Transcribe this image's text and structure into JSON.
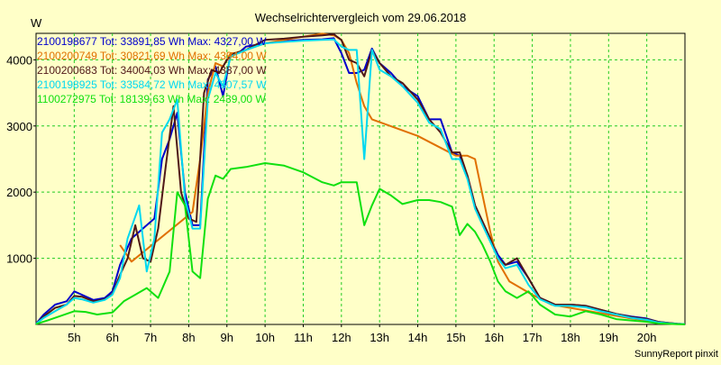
{
  "chart_data": {
    "type": "line",
    "title": "Wechselrichtervergleich vom 29.06.2018",
    "ylabel": "W",
    "xlabel": "",
    "footer": "SunnyReport pinxit",
    "xlim": [
      4.0,
      21.0
    ],
    "ylim": [
      0,
      4400
    ],
    "xticks": [
      5,
      6,
      7,
      8,
      9,
      10,
      11,
      12,
      13,
      14,
      15,
      16,
      17,
      18,
      19,
      20
    ],
    "xtick_labels": [
      "5h",
      "6h",
      "7h",
      "8h",
      "9h",
      "10h",
      "11h",
      "12h",
      "13h",
      "14h",
      "15h",
      "16h",
      "17h",
      "18h",
      "19h",
      "20h"
    ],
    "yticks": [
      1000,
      2000,
      3000,
      4000
    ],
    "ytick_labels": [
      "1000",
      "2000",
      "3000",
      "4000"
    ],
    "grid": true,
    "legend_position": "top-left",
    "series": [
      {
        "name": "2100198677",
        "legend": "2100198677 Tot: 33891,85 Wh Max: 4327,00 W",
        "color": "#0000cc",
        "x": [
          4.0,
          4.2,
          4.5,
          4.8,
          5.0,
          5.2,
          5.5,
          5.8,
          6.0,
          6.2,
          6.5,
          6.7,
          6.9,
          7.1,
          7.3,
          7.5,
          7.7,
          7.9,
          8.1,
          8.3,
          8.5,
          8.7,
          8.9,
          9.1,
          9.3,
          9.5,
          10.0,
          10.5,
          11.0,
          11.5,
          11.8,
          12.0,
          12.2,
          12.4,
          12.6,
          12.8,
          13.0,
          13.3,
          13.6,
          14.0,
          14.3,
          14.6,
          14.9,
          15.1,
          15.3,
          15.5,
          15.7,
          15.9,
          16.1,
          16.3,
          16.6,
          16.9,
          17.2,
          17.6,
          18.0,
          18.4,
          18.8,
          19.2,
          19.6,
          20.0,
          20.3,
          20.6,
          20.8,
          21.0
        ],
        "y": [
          10,
          150,
          300,
          350,
          500,
          450,
          370,
          400,
          500,
          900,
          1300,
          1400,
          1500,
          1600,
          2500,
          2800,
          3200,
          2000,
          1500,
          1500,
          3700,
          3900,
          3450,
          4100,
          4100,
          4200,
          4250,
          4280,
          4300,
          4310,
          4327,
          4100,
          3800,
          3800,
          3850,
          4170,
          3950,
          3800,
          3600,
          3450,
          3100,
          3100,
          2600,
          2550,
          2250,
          1800,
          1550,
          1300,
          1050,
          900,
          950,
          700,
          400,
          300,
          300,
          280,
          220,
          160,
          120,
          90,
          40,
          20,
          10,
          5
        ]
      },
      {
        "name": "2100200749",
        "legend": "2100200749 Tot: 30821,69 Wh Max: 4394,00 W",
        "color": "#e07000",
        "x": [
          6.2,
          6.5,
          8.1,
          8.3,
          8.5,
          8.7,
          8.9,
          9.1,
          9.3,
          9.5,
          10.0,
          10.5,
          11.0,
          11.5,
          11.8,
          12.0,
          12.2,
          12.4,
          12.6,
          12.8,
          14.0,
          15.0,
          15.3,
          15.5,
          15.7,
          15.9,
          16.1,
          16.4,
          17.0,
          17.5,
          18.0,
          18.5,
          19.0,
          19.5,
          20.0,
          20.5,
          20.8
        ],
        "y": [
          1200,
          950,
          1700,
          2500,
          3500,
          3950,
          3900,
          4100,
          4100,
          4150,
          4250,
          4300,
          4350,
          4394,
          4370,
          4300,
          4100,
          3650,
          3300,
          3100,
          2850,
          2550,
          2550,
          2500,
          1950,
          1400,
          950,
          650,
          450,
          300,
          250,
          200,
          150,
          100,
          60,
          20,
          10
        ]
      },
      {
        "name": "2100200683",
        "legend": "2100200683 Tot: 34004,03 Wh Max: 4387,00 W",
        "color": "#501818",
        "x": [
          4.0,
          4.2,
          4.5,
          4.8,
          5.0,
          5.2,
          5.5,
          5.8,
          6.0,
          6.2,
          6.4,
          6.6,
          6.8,
          7.0,
          7.2,
          7.4,
          7.6,
          7.8,
          8.0,
          8.2,
          8.4,
          8.6,
          8.8,
          9.0,
          9.2,
          9.5,
          10.0,
          10.5,
          11.0,
          11.5,
          11.8,
          12.0,
          12.2,
          12.4,
          12.6,
          12.8,
          13.0,
          13.3,
          13.6,
          14.0,
          14.3,
          14.6,
          14.9,
          15.1,
          15.3,
          15.5,
          15.7,
          15.9,
          16.1,
          16.3,
          16.6,
          16.9,
          17.2,
          17.6,
          18.0,
          18.4,
          18.8,
          19.2,
          19.6,
          20.0,
          20.3,
          20.6,
          20.8,
          21.0
        ],
        "y": [
          10,
          120,
          250,
          300,
          430,
          420,
          350,
          380,
          460,
          750,
          1000,
          1500,
          1000,
          950,
          1450,
          2400,
          3300,
          2000,
          1600,
          1550,
          3500,
          3850,
          3800,
          4000,
          4100,
          4150,
          4300,
          4320,
          4350,
          4370,
          4387,
          4300,
          4000,
          3950,
          3750,
          4150,
          3950,
          3750,
          3650,
          3400,
          3100,
          2900,
          2600,
          2600,
          2250,
          1800,
          1550,
          1300,
          1000,
          900,
          1000,
          700,
          400,
          300,
          300,
          280,
          220,
          160,
          110,
          80,
          40,
          20,
          10,
          5
        ]
      },
      {
        "name": "2100198925",
        "legend": "2100198925 Tot: 33584,72 Wh Max: 4307,57 W",
        "color": "#00d8f0",
        "x": [
          4.0,
          4.2,
          4.5,
          4.8,
          5.0,
          5.2,
          5.5,
          5.8,
          6.0,
          6.2,
          6.4,
          6.7,
          6.9,
          7.1,
          7.3,
          7.5,
          7.7,
          7.9,
          8.1,
          8.3,
          8.5,
          8.7,
          8.9,
          9.1,
          9.3,
          9.5,
          10.0,
          10.5,
          11.0,
          11.5,
          11.8,
          12.0,
          12.2,
          12.4,
          12.6,
          12.8,
          13.0,
          13.3,
          13.6,
          14.0,
          14.3,
          14.6,
          14.9,
          15.1,
          15.3,
          15.5,
          15.7,
          15.9,
          16.1,
          16.3,
          16.6,
          16.9,
          17.2,
          17.6,
          18.0,
          18.4,
          18.8,
          19.2,
          19.6,
          20.0,
          20.3,
          20.6,
          20.8,
          21.0
        ],
        "y": [
          10,
          100,
          200,
          300,
          400,
          380,
          330,
          370,
          450,
          700,
          1300,
          1800,
          800,
          1300,
          2900,
          3100,
          3400,
          1900,
          1450,
          1450,
          3400,
          3800,
          3600,
          4050,
          4100,
          4150,
          4250,
          4270,
          4290,
          4300,
          4307,
          4200,
          4150,
          4150,
          2500,
          4150,
          3850,
          3750,
          3600,
          3350,
          3050,
          2950,
          2500,
          2500,
          2200,
          1750,
          1500,
          1250,
          1000,
          850,
          900,
          600,
          380,
          280,
          280,
          260,
          200,
          150,
          100,
          70,
          30,
          15,
          8,
          5
        ]
      },
      {
        "name": "1100272975",
        "legend": "1100272975 Tot: 18139,63 Wh Max: 2439,00 W",
        "color": "#10e010",
        "x": [
          4.0,
          4.3,
          4.6,
          5.0,
          5.3,
          5.6,
          6.0,
          6.3,
          6.6,
          6.9,
          7.2,
          7.5,
          7.7,
          7.9,
          8.1,
          8.3,
          8.5,
          8.7,
          8.9,
          9.1,
          9.5,
          10.0,
          10.5,
          11.0,
          11.5,
          11.8,
          12.0,
          12.2,
          12.4,
          12.6,
          12.8,
          13.0,
          13.3,
          13.6,
          14.0,
          14.3,
          14.6,
          14.9,
          15.1,
          15.3,
          15.5,
          15.7,
          15.9,
          16.1,
          16.3,
          16.6,
          16.9,
          17.2,
          17.6,
          18.0,
          18.4,
          18.8,
          19.2,
          19.6,
          20.0,
          20.3,
          20.6,
          20.8,
          21.0
        ],
        "y": [
          5,
          60,
          120,
          200,
          190,
          150,
          180,
          350,
          450,
          550,
          400,
          800,
          2000,
          1800,
          800,
          700,
          1900,
          2250,
          2200,
          2350,
          2380,
          2439,
          2400,
          2300,
          2150,
          2100,
          2150,
          2150,
          2150,
          1500,
          1800,
          2050,
          1950,
          1820,
          1880,
          1880,
          1850,
          1780,
          1350,
          1520,
          1400,
          1200,
          950,
          650,
          500,
          400,
          500,
          300,
          150,
          120,
          200,
          150,
          80,
          60,
          40,
          15,
          8,
          4,
          2
        ]
      }
    ]
  }
}
